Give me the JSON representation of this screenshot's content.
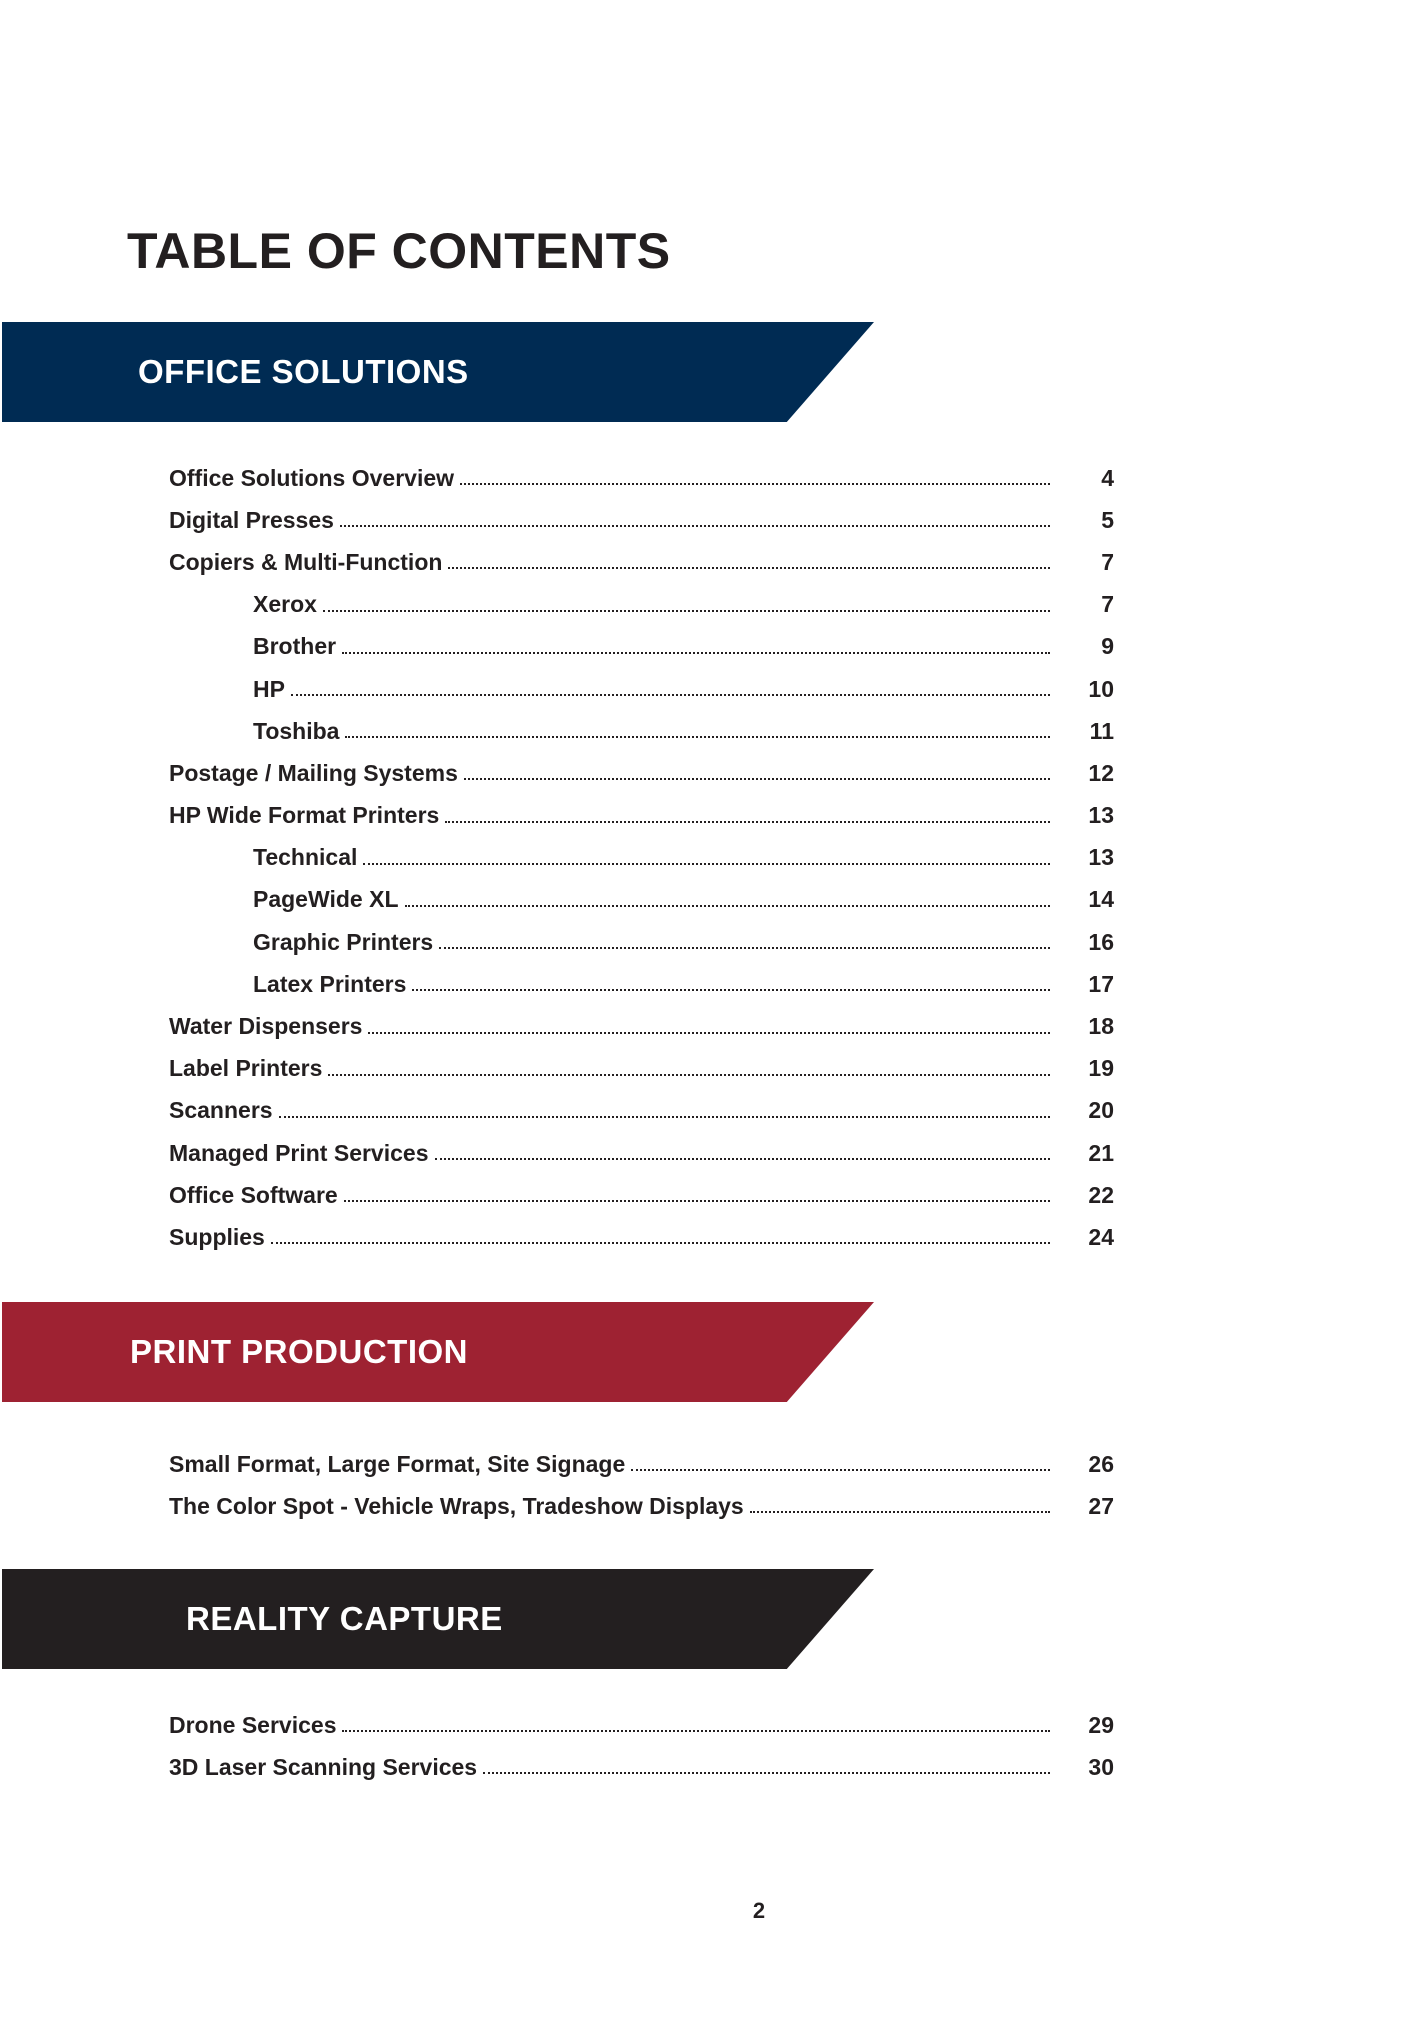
{
  "title": "TABLE OF CONTENTS",
  "colors": {
    "office": "#002b53",
    "print": "#9e2232",
    "reality": "#231f20"
  },
  "sections": [
    {
      "heading": "OFFICE SOLUTIONS",
      "entries": [
        {
          "label": "Office Solutions Overview",
          "page": "4",
          "indent": false
        },
        {
          "label": "Digital Presses",
          "page": "5",
          "indent": false
        },
        {
          "label": "Copiers & Multi-Function",
          "page": "7",
          "indent": false
        },
        {
          "label": "Xerox",
          "page": "7",
          "indent": true
        },
        {
          "label": "Brother",
          "page": "9",
          "indent": true
        },
        {
          "label": "HP",
          "page": "10",
          "indent": true
        },
        {
          "label": "Toshiba",
          "page": "11",
          "indent": true
        },
        {
          "label": "Postage / Mailing Systems",
          "page": "12",
          "indent": false
        },
        {
          "label": "HP Wide Format Printers",
          "page": "13",
          "indent": false
        },
        {
          "label": "Technical",
          "page": "13",
          "indent": true
        },
        {
          "label": "PageWide XL",
          "page": "14",
          "indent": true
        },
        {
          "label": "Graphic Printers",
          "page": "16",
          "indent": true
        },
        {
          "label": "Latex Printers",
          "page": "17",
          "indent": true
        },
        {
          "label": "Water Dispensers",
          "page": "18",
          "indent": false
        },
        {
          "label": "Label Printers",
          "page": "19",
          "indent": false
        },
        {
          "label": "Scanners",
          "page": "20",
          "indent": false
        },
        {
          "label": "Managed Print Services",
          "page": "21",
          "indent": false
        },
        {
          "label": "Office Software",
          "page": "22",
          "indent": false
        },
        {
          "label": "Supplies",
          "page": "24",
          "indent": false
        }
      ]
    },
    {
      "heading": "PRINT PRODUCTION",
      "entries": [
        {
          "label": "Small Format, Large Format, Site Signage",
          "page": "26",
          "indent": false
        },
        {
          "label": "The Color Spot - Vehicle Wraps, Tradeshow Displays",
          "page": "27",
          "indent": false
        }
      ]
    },
    {
      "heading": "REALITY CAPTURE",
      "entries": [
        {
          "label": "Drone Services",
          "page": "29",
          "indent": false
        },
        {
          "label": "3D Laser Scanning Services",
          "page": "30",
          "indent": false
        }
      ]
    }
  ],
  "page_number": "2"
}
